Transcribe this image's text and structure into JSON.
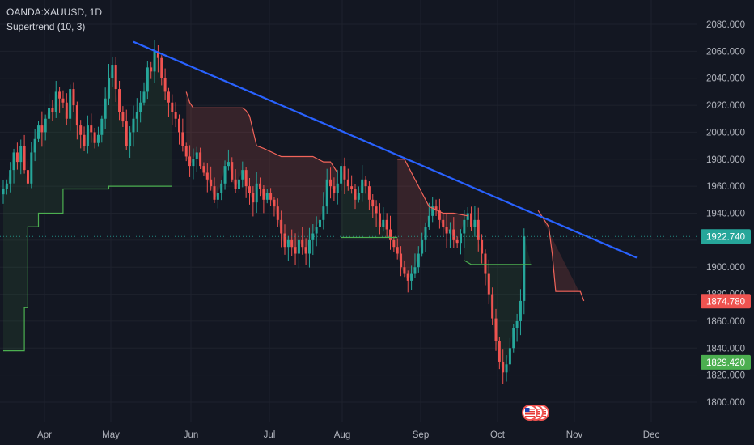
{
  "header": {
    "symbol_line": "OANDA:XAUUSD, 1D",
    "indicator": "Supertrend (10, 3)"
  },
  "colors": {
    "background": "#131722",
    "grid": "#1e222d",
    "up": "#26a69a",
    "down": "#ef5350",
    "supertrend_up": "#4caf50",
    "supertrend_down": "#f2645a",
    "trendline": "#2962ff",
    "axis_text": "#b2b5be"
  },
  "chart_data": {
    "type": "candlestick",
    "y_ticks": [
      "2080.000",
      "2060.000",
      "2040.000",
      "2020.000",
      "2000.000",
      "1980.000",
      "1960.000",
      "1940.000",
      "1920.000",
      "1900.000",
      "1880.000",
      "1860.000",
      "1840.000",
      "1820.000",
      "1800.000"
    ],
    "x_ticks": [
      "Apr",
      "May",
      "Jun",
      "Jul",
      "Aug",
      "Sep",
      "Oct",
      "Nov",
      "Dec"
    ],
    "ylim": [
      1792,
      2088
    ],
    "series_close": [
      1958,
      1962,
      1972,
      1985,
      1978,
      1990,
      1972,
      1962,
      1985,
      1995,
      2005,
      2000,
      2010,
      2018,
      2015,
      2030,
      2025,
      2022,
      2010,
      2032,
      2020,
      2005,
      1998,
      1990,
      2005,
      2000,
      1992,
      1998,
      2010,
      2025,
      2040,
      2050,
      2032,
      2015,
      2008,
      1990,
      2000,
      2010,
      2015,
      2022,
      2030,
      2048,
      2045,
      2060,
      2055,
      2040,
      2030,
      2022,
      2015,
      2010,
      2000,
      1990,
      1982,
      1975,
      1980,
      1985,
      1975,
      1970,
      1965,
      1960,
      1950,
      1955,
      1962,
      1975,
      1978,
      1965,
      1958,
      1965,
      1972,
      1960,
      1955,
      1948,
      1962,
      1958,
      1950,
      1955,
      1950,
      1945,
      1935,
      1925,
      1915,
      1920,
      1915,
      1910,
      1920,
      1915,
      1910,
      1920,
      1925,
      1930,
      1935,
      1945,
      1965,
      1960,
      1955,
      1962,
      1975,
      1965,
      1960,
      1958,
      1950,
      1955,
      1965,
      1960,
      1950,
      1945,
      1940,
      1930,
      1935,
      1928,
      1920,
      1915,
      1910,
      1900,
      1895,
      1890,
      1895,
      1900,
      1910,
      1920,
      1930,
      1938,
      1945,
      1942,
      1935,
      1930,
      1925,
      1928,
      1920,
      1918,
      1925,
      1935,
      1940,
      1930,
      1935,
      1920,
      1910,
      1895,
      1880,
      1862,
      1845,
      1830,
      1822,
      1828,
      1840,
      1855,
      1860,
      1875,
      1922.74
    ],
    "supertrend": [
      {
        "dir": "up",
        "points": [
          [
            0,
            1838
          ],
          [
            6,
            1838
          ],
          [
            6,
            1870
          ],
          [
            7,
            1870
          ],
          [
            7,
            1930
          ],
          [
            10,
            1930
          ],
          [
            10,
            1940
          ],
          [
            17,
            1940
          ],
          [
            17,
            1958
          ],
          [
            30,
            1958
          ],
          [
            30,
            1960
          ],
          [
            48,
            1960
          ]
        ]
      },
      {
        "dir": "down",
        "points": [
          [
            52,
            2030
          ],
          [
            53,
            2022
          ],
          [
            54,
            2018
          ],
          [
            68,
            2018
          ],
          [
            69,
            2016
          ],
          [
            70,
            2012
          ],
          [
            72,
            1990
          ],
          [
            74,
            1988
          ],
          [
            79,
            1982
          ],
          [
            88,
            1982
          ],
          [
            91,
            1978
          ],
          [
            93,
            1978
          ],
          [
            95,
            1970
          ]
        ]
      },
      {
        "dir": "up",
        "points": [
          [
            96,
            1922
          ],
          [
            112,
            1922
          ]
        ]
      },
      {
        "dir": "down",
        "points": [
          [
            112,
            1980
          ],
          [
            114,
            1980
          ],
          [
            118,
            1960
          ],
          [
            121,
            1945
          ],
          [
            125,
            1940
          ],
          [
            128,
            1940
          ],
          [
            132,
            1938
          ]
        ]
      },
      {
        "dir": "up",
        "points": [
          [
            131,
            1905
          ],
          [
            133,
            1902
          ],
          [
            150,
            1902
          ]
        ]
      },
      {
        "dir": "down",
        "points": [
          [
            152,
            1942
          ],
          [
            155,
            1930
          ],
          [
            156,
            1910
          ],
          [
            157,
            1882
          ],
          [
            164,
            1882
          ],
          [
            165,
            1875
          ]
        ]
      }
    ],
    "trendline": {
      "start": {
        "x": 37,
        "y": 2067
      },
      "end": {
        "x": 180,
        "y": 1907
      }
    },
    "price_labels": [
      {
        "value": 1922.74,
        "text": "1922.740",
        "color": "#26a69a"
      },
      {
        "value": 1874.78,
        "text": "1874.780",
        "color": "#ef5350"
      },
      {
        "value": 1829.42,
        "text": "1829.420",
        "color": "#4caf50"
      }
    ]
  },
  "events": {
    "icon": "us-flag-icon",
    "count": 3
  }
}
